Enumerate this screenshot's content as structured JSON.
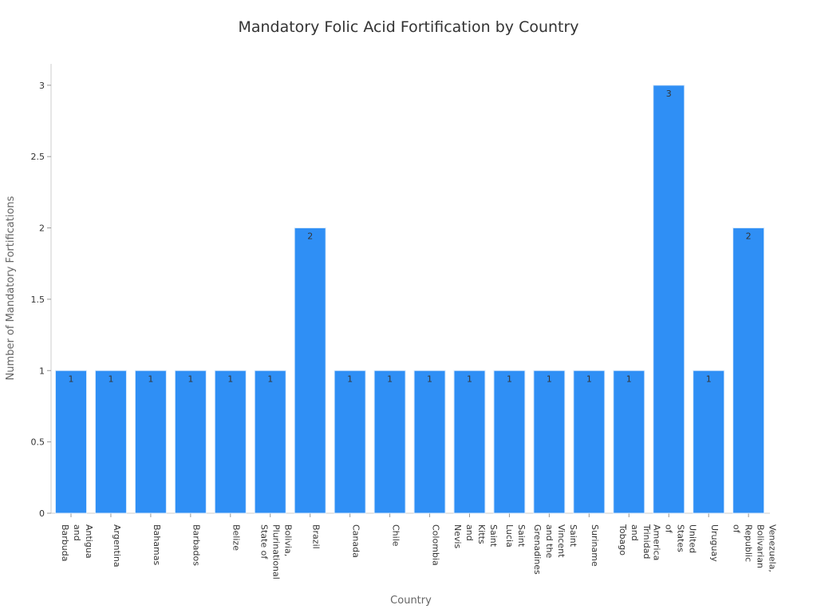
{
  "chart_data": {
    "type": "bar",
    "title": "Mandatory Folic Acid Fortification by Country",
    "xlabel": "Country",
    "ylabel": "Number of Mandatory Fortifications",
    "ylim": [
      0,
      3.15
    ],
    "yticks": [
      "0",
      "0.5",
      "1",
      "1.5",
      "2",
      "2.5",
      "3"
    ],
    "grid": false,
    "legend": "none",
    "categories": [
      "Antigua and Barbuda",
      "Argentina",
      "Bahamas",
      "Barbados",
      "Belize",
      "Bolivia, Plurinational State of",
      "Brazil",
      "Canada",
      "Chile",
      "Colombia",
      "Saint Kitts and Nevis",
      "Saint Lucia",
      "Saint Vincent and the Grenadines",
      "Suriname",
      "Trinidad and Tobago",
      "United States of America",
      "Uruguay",
      "Venezuela, Bolivarian Republic of"
    ],
    "category_label_lines": [
      [
        "Antigua",
        "and",
        "Barbuda"
      ],
      [
        "Argentina"
      ],
      [
        "Bahamas"
      ],
      [
        "Barbados"
      ],
      [
        "Belize"
      ],
      [
        "Bolivia,",
        "Plurinational",
        "State of"
      ],
      [
        "Brazil"
      ],
      [
        "Canada"
      ],
      [
        "Chile"
      ],
      [
        "Colombia"
      ],
      [
        "Saint",
        "Kitts",
        "and",
        "Nevis"
      ],
      [
        "Saint",
        "Lucia"
      ],
      [
        "Saint",
        "Vincent",
        "and the",
        "Grenadines"
      ],
      [
        "Suriname"
      ],
      [
        "Trinidad",
        "and",
        "Tobago"
      ],
      [
        "United",
        "States",
        "of",
        "America"
      ],
      [
        "Uruguay"
      ],
      [
        "Venezuela,",
        "Bolivarian",
        "Republic",
        "of"
      ]
    ],
    "values": [
      1,
      1,
      1,
      1,
      1,
      1,
      2,
      1,
      1,
      1,
      1,
      1,
      1,
      1,
      1,
      3,
      1,
      2
    ],
    "data_labels": [
      "1",
      "1",
      "1",
      "1",
      "1",
      "1",
      "2",
      "1",
      "1",
      "1",
      "1",
      "1",
      "1",
      "1",
      "1",
      "3",
      "1",
      "2"
    ],
    "colors": {
      "bar": "#2f8ff5",
      "bar_edge": "#d8e9fb",
      "axis": "#cccccc",
      "text": "#333333",
      "axis_title": "#666666"
    }
  }
}
